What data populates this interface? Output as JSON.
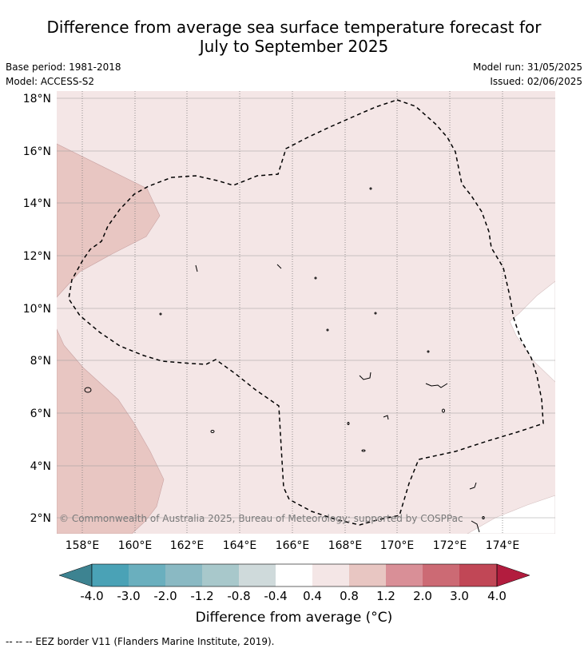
{
  "title_line1": "Difference from average sea surface temperature forecast for",
  "title_line2": "July to September 2025",
  "base_period": "Base period: 1981-2018",
  "model": "Model: ACCESS-S2",
  "model_run": "Model run: 31/05/2025",
  "issued": "Issued: 02/06/2025",
  "copyright": "© Commonwealth of Australia 2025, Bureau of Meteorology; supported by COSPPac",
  "colorbar_label": "Difference from average (°C)",
  "footer": "--  --  -- EEZ border V11 (Flanders Marine Institute, 2019).",
  "map": {
    "lon_ticks": [
      "158°E",
      "160°E",
      "162°E",
      "164°E",
      "166°E",
      "168°E",
      "170°E",
      "172°E",
      "174°E"
    ],
    "lat_ticks": [
      "18°N",
      "16°N",
      "14°N",
      "12°N",
      "10°N",
      "8°N",
      "6°N",
      "4°N",
      "2°N"
    ],
    "background_color": "#f4e6e6",
    "anomaly_color": "#e8c6c2"
  },
  "colorbar": {
    "ticks": [
      "-4.0",
      "-3.0",
      "-2.0",
      "-1.2",
      "-0.8",
      "-0.4",
      "0.4",
      "0.8",
      "1.2",
      "2.0",
      "3.0",
      "4.0"
    ],
    "colors": [
      "#4aa2b6",
      "#6aafbe",
      "#8ab9c3",
      "#a8c8cb",
      "#cfdadb",
      "#ffffff",
      "#f4e6e6",
      "#e8c6c2",
      "#d98f97",
      "#cc6a74",
      "#c14756"
    ],
    "low_extend_color": "#3d8391",
    "high_extend_color": "#b21c3e"
  }
}
